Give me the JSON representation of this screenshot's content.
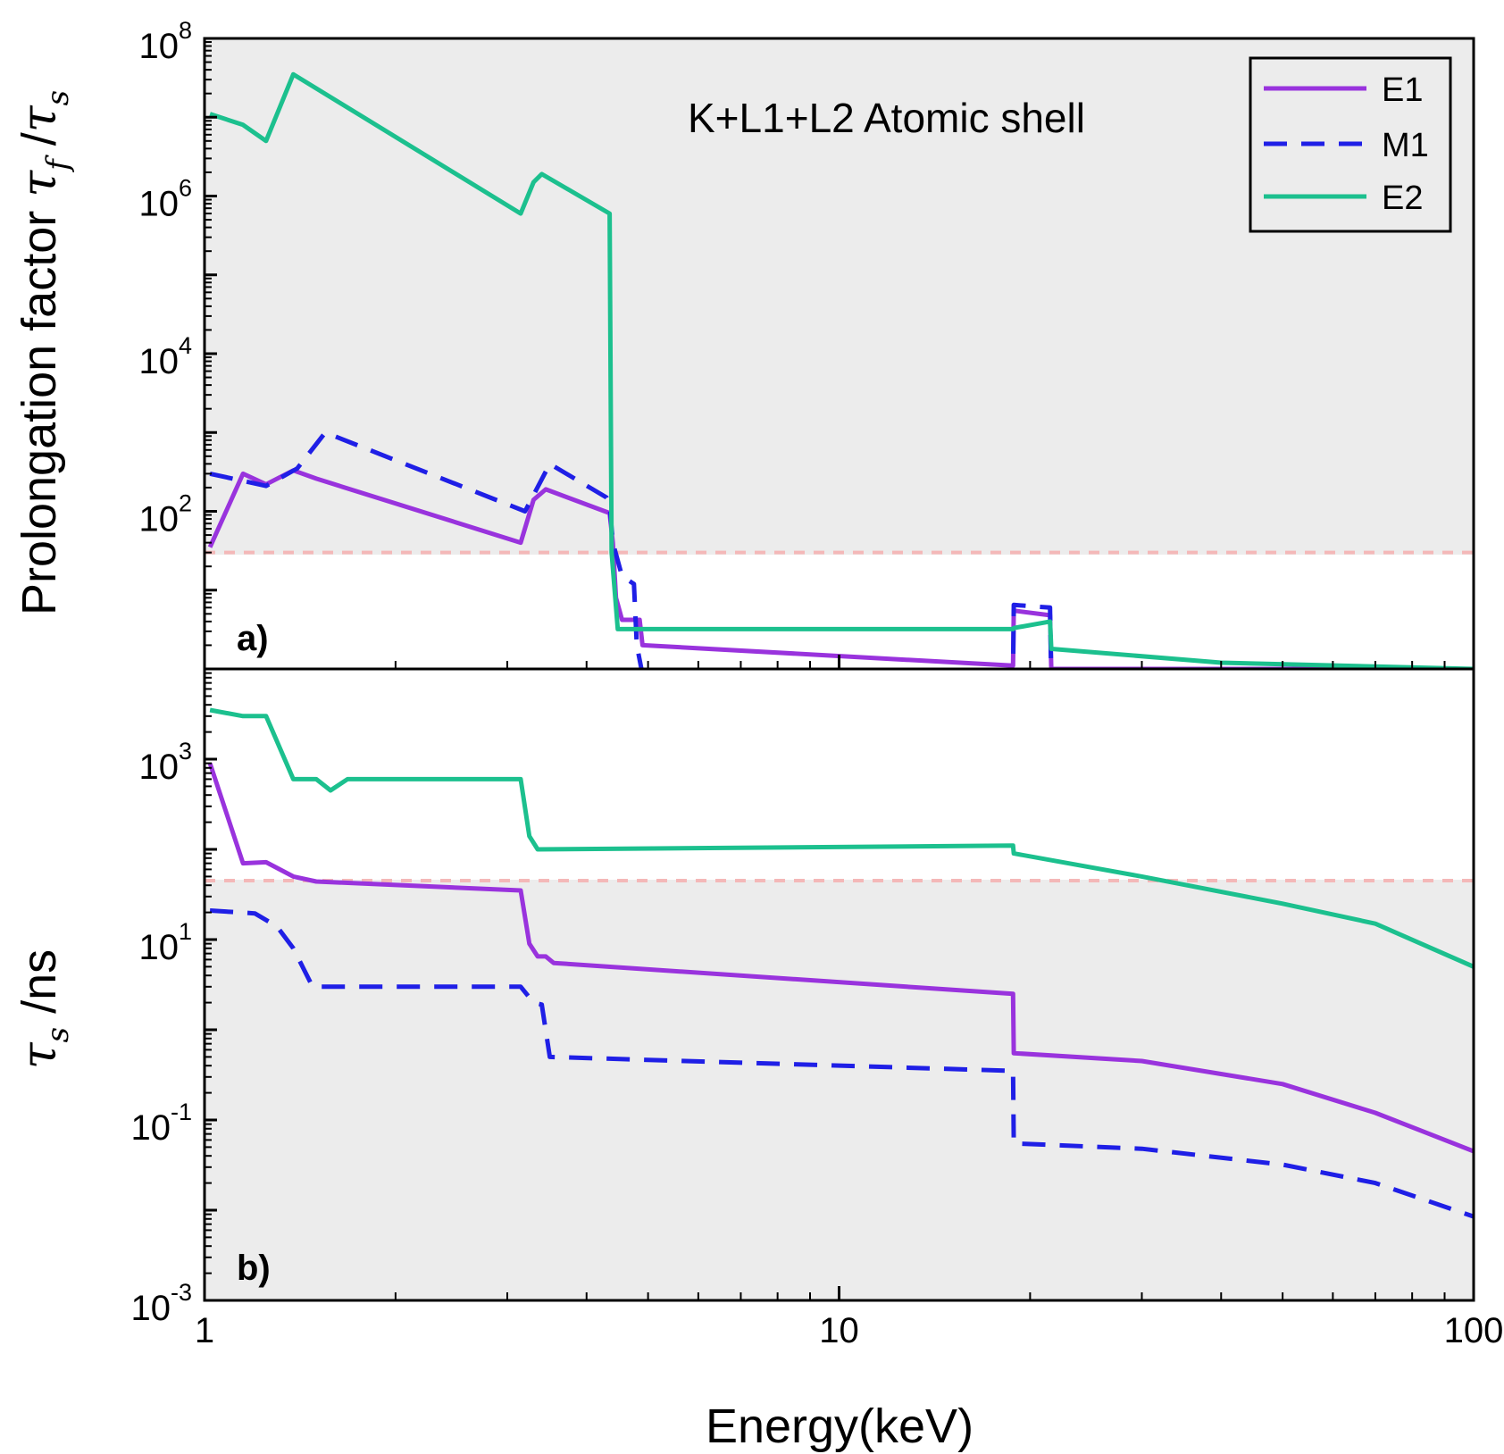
{
  "chart_data": [
    {
      "type": "line",
      "panel_label": "a)",
      "annotation": "K+L1+L2 Atomic shell",
      "ylabel_prefix": "Prolongation  factor",
      "ylabel_symbol": "τ",
      "ylabel_sub_f": "f",
      "ylabel_sep": " /",
      "ylabel_sub_s": "s",
      "xscale": "log",
      "yscale": "log",
      "xlim": [
        1,
        100
      ],
      "ylim_log10": [
        0,
        8
      ],
      "ytick_labels": [
        {
          "base": "10",
          "exp": "2"
        },
        {
          "base": "10",
          "exp": "4"
        },
        {
          "base": "10",
          "exp": "6"
        },
        {
          "base": "10",
          "exp": "8"
        }
      ],
      "reference_line": 30,
      "legend": {
        "position": "top-right",
        "entries": [
          "E1",
          "M1",
          "E2"
        ]
      },
      "series": [
        {
          "name": "E1",
          "color": "#9933dd",
          "dash": "solid",
          "x": [
            1.02,
            1.15,
            1.25,
            1.38,
            1.5,
            3.15,
            3.3,
            3.45,
            4.35,
            4.4,
            4.45,
            4.55,
            4.85,
            4.9,
            18.8,
            18.85,
            21.5,
            21.6,
            100
          ],
          "y": [
            35,
            300,
            220,
            330,
            260,
            40,
            140,
            190,
            95,
            40,
            8,
            4.2,
            4.2,
            2.0,
            1.1,
            5.5,
            4.8,
            1.0,
            1.0
          ]
        },
        {
          "name": "M1",
          "color": "#1f1fe6",
          "dash": "dashed",
          "x": [
            1.02,
            1.25,
            1.4,
            1.55,
            3.2,
            3.5,
            4.3,
            4.35,
            4.4,
            4.55,
            4.75,
            4.8,
            4.9,
            18.8,
            18.85,
            21.5,
            21.6,
            100
          ],
          "y": [
            300,
            210,
            350,
            1000,
            100,
            400,
            150,
            120,
            40,
            15,
            12,
            2,
            0.85,
            0.85,
            6.5,
            6.0,
            0.7,
            0.7
          ]
        },
        {
          "name": "E2",
          "color": "#1cc08e",
          "dash": "solid",
          "x": [
            1.02,
            1.15,
            1.25,
            1.38,
            3.15,
            3.3,
            3.4,
            4.35,
            4.38,
            4.48,
            4.6,
            18.8,
            18.85,
            21.5,
            21.6,
            40,
            100
          ],
          "y": [
            11000000,
            8000000,
            5000000,
            35000000,
            600000,
            1500000,
            1900000,
            600000,
            30,
            3.2,
            3.2,
            3.2,
            3.3,
            4.0,
            1.8,
            1.2,
            1.0
          ]
        }
      ]
    },
    {
      "type": "line",
      "panel_label": "b)",
      "xlabel": "Energy(keV)",
      "ylabel_symbol": "τ",
      "ylabel_sub_s": "s",
      "ylabel_suffix": " /ns",
      "xscale": "log",
      "yscale": "log",
      "xlim": [
        1,
        100
      ],
      "ylim_log10": [
        -3,
        4
      ],
      "xtick_labels": [
        "1",
        "10",
        "100"
      ],
      "ytick_labels": [
        {
          "base": "10",
          "exp": "-3"
        },
        {
          "base": "10",
          "exp": "-1"
        },
        {
          "base": "10",
          "exp": "1"
        },
        {
          "base": "10",
          "exp": "3"
        }
      ],
      "reference_line": 45,
      "series": [
        {
          "name": "E1",
          "color": "#9933dd",
          "dash": "solid",
          "x": [
            1.02,
            1.15,
            1.25,
            1.38,
            1.5,
            3.15,
            3.25,
            3.35,
            3.45,
            3.55,
            18.8,
            18.85,
            30,
            50,
            70,
            100
          ],
          "y": [
            900,
            70,
            72,
            50,
            44,
            35,
            9,
            6.5,
            6.5,
            5.5,
            2.5,
            0.55,
            0.45,
            0.25,
            0.12,
            0.045
          ]
        },
        {
          "name": "M1",
          "color": "#1f1fe6",
          "dash": "dashed",
          "x": [
            1.02,
            1.2,
            1.3,
            1.38,
            1.48,
            3.15,
            3.3,
            3.4,
            3.5,
            18.8,
            18.85,
            30,
            50,
            70,
            100
          ],
          "y": [
            21,
            19.5,
            14,
            8,
            3.0,
            3.0,
            2.0,
            1.9,
            0.5,
            0.35,
            0.055,
            0.048,
            0.032,
            0.02,
            0.0085
          ]
        },
        {
          "name": "E2",
          "color": "#1cc08e",
          "dash": "solid",
          "x": [
            1.02,
            1.15,
            1.25,
            1.38,
            1.5,
            1.58,
            1.68,
            3.15,
            3.25,
            3.35,
            18.8,
            18.85,
            30,
            50,
            70,
            100
          ],
          "y": [
            3500,
            3000,
            3000,
            600,
            600,
            450,
            600,
            600,
            140,
            100,
            110,
            90,
            50,
            25,
            15,
            5
          ]
        }
      ]
    }
  ]
}
